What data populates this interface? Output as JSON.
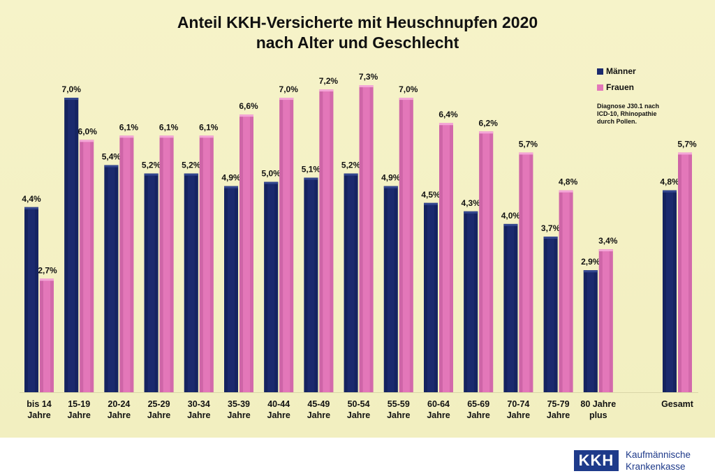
{
  "chart_data": {
    "type": "bar",
    "title": [
      "Anteil KKH-Versicherte mit Heuschnupfen 2020",
      "nach Alter und Geschlecht"
    ],
    "categories": [
      [
        "bis 14",
        "Jahre"
      ],
      [
        "15-19",
        "Jahre"
      ],
      [
        "20-24",
        "Jahre"
      ],
      [
        "25-29",
        "Jahre"
      ],
      [
        "30-34",
        "Jahre"
      ],
      [
        "35-39",
        "Jahre"
      ],
      [
        "40-44",
        "Jahre"
      ],
      [
        "45-49",
        "Jahre"
      ],
      [
        "50-54",
        "Jahre"
      ],
      [
        "55-59",
        "Jahre"
      ],
      [
        "60-64",
        "Jahre"
      ],
      [
        "65-69",
        "Jahre"
      ],
      [
        "70-74",
        "Jahre"
      ],
      [
        "75-79",
        "Jahre"
      ],
      [
        "80 Jahre",
        "plus"
      ],
      [
        "Gesamt"
      ]
    ],
    "series": [
      {
        "name": "Männer",
        "color": "#1b2a6e",
        "values": [
          4.4,
          7.0,
          5.4,
          5.2,
          5.2,
          4.9,
          5.0,
          5.1,
          5.2,
          4.9,
          4.5,
          4.3,
          4.0,
          3.7,
          2.9,
          4.8
        ],
        "labels": [
          "4,4%",
          "7,0%",
          "5,4%",
          "5,2%",
          "5,2%",
          "4,9%",
          "5,0%",
          "5,1%",
          "5,2%",
          "4,9%",
          "4,5%",
          "4,3%",
          "4,0%",
          "3,7%",
          "2,9%",
          "4,8%"
        ]
      },
      {
        "name": "Frauen",
        "color": "#e377b9",
        "values": [
          2.7,
          6.0,
          6.1,
          6.1,
          6.1,
          6.6,
          7.0,
          7.2,
          7.3,
          7.0,
          6.4,
          6.2,
          5.7,
          4.8,
          3.4,
          5.7
        ],
        "labels": [
          "2,7%",
          "6,0%",
          "6,1%",
          "6,1%",
          "6,1%",
          "6,6%",
          "7,0%",
          "7,2%",
          "7,3%",
          "7,0%",
          "6,4%",
          "6,2%",
          "5,7%",
          "4,8%",
          "3,4%",
          "5,7%"
        ]
      }
    ],
    "ylim": [
      0,
      7.3
    ],
    "grid": false,
    "legend_position": "top-right",
    "annotation": [
      "Diagnose J30.1 nach",
      "ICD-10, Rhinopathie",
      "durch Pollen."
    ]
  },
  "logo": {
    "mark": "KKH",
    "text": [
      "Kaufmännische",
      "Krankenkasse"
    ]
  }
}
